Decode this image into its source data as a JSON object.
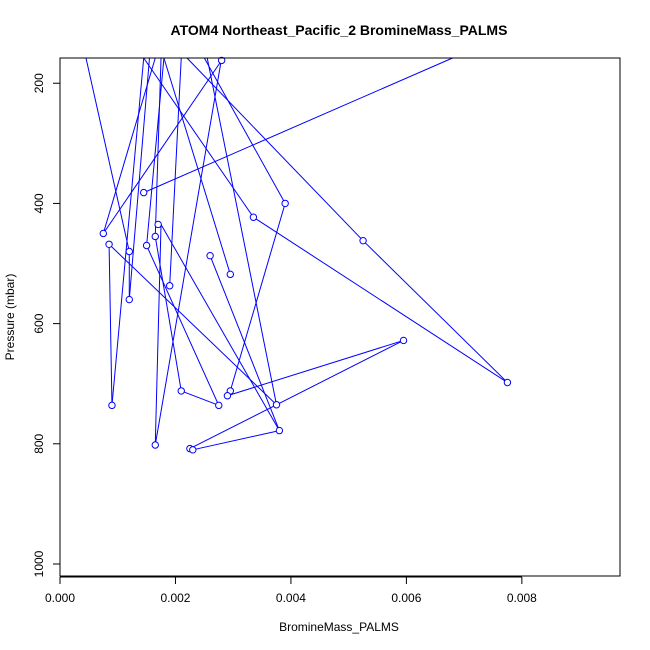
{
  "chart_data": {
    "type": "line",
    "title": "ATOM4 Northeast_Pacific_2 BromineMass_PALMS",
    "xlabel": "BromineMass_PALMS",
    "ylabel": "Pressure (mbar)",
    "xlim": [
      0,
      0.0097
    ],
    "ylim": [
      1020,
      158
    ],
    "y_reversed": true,
    "grid": false,
    "legend": "none",
    "x_ticks": [
      0,
      0.002,
      0.004,
      0.006,
      0.008
    ],
    "x_tick_labels": [
      "0.000",
      "0.002",
      "0.004",
      "0.006",
      "0.008"
    ],
    "y_ticks": [
      200,
      400,
      600,
      800,
      1000
    ],
    "y_tick_labels": [
      "200",
      "400",
      "600",
      "800",
      "1000"
    ],
    "color": "#0000ff",
    "series": [
      {
        "x": [
          0.0027,
          0.0001,
          0.0045,
          0.0068,
          0.00145,
          0.0053,
          0.0018,
          0.0039,
          0.0029,
          0.0025,
          0.0017,
          0.0005,
          0.0015,
          0.0029,
          0.0034,
          0.0035,
          0.0022,
          0.0026,
          0.0021,
          0.0038,
          0.0024,
          0.0057,
          0.0016,
          0.0013,
          0.0001,
          0.0037,
          0.0059,
          0.0027,
          0.00075,
          0.0028,
          0.00165,
          0.0023,
          0.0012,
          0.0001,
          0.0017,
          0.0032,
          0.0052,
          0.0078,
          0.0036,
          0.0015,
          0.0007
        ],
        "y": [
          205,
          158,
          245,
          158,
          382,
          158,
          458,
          400,
          165,
          487,
          540,
          158,
          300,
          300,
          158,
          435,
          170,
          720,
          158,
          780,
          810,
          630,
          158,
          160,
          800,
          158,
          640,
          160,
          470,
          200,
          455,
          810,
          735,
          160,
          350,
          425,
          463,
          698,
          370,
          420,
          460
        ]
      }
    ],
    "points": [
      {
        "x": 0.0028,
        "y": 162
      },
      {
        "x": 0.00145,
        "y": 382
      },
      {
        "x": 0.0039,
        "y": 400
      },
      {
        "x": 0.00335,
        "y": 423
      },
      {
        "x": 0.0017,
        "y": 435
      },
      {
        "x": 0.00075,
        "y": 450
      },
      {
        "x": 0.00165,
        "y": 455
      },
      {
        "x": 0.00525,
        "y": 462
      },
      {
        "x": 0.00085,
        "y": 468
      },
      {
        "x": 0.0015,
        "y": 470
      },
      {
        "x": 0.0012,
        "y": 480
      },
      {
        "x": 0.0026,
        "y": 487
      },
      {
        "x": 0.00295,
        "y": 518
      },
      {
        "x": 0.0019,
        "y": 537
      },
      {
        "x": 0.0012,
        "y": 560
      },
      {
        "x": 0.00595,
        "y": 628
      },
      {
        "x": 0.00775,
        "y": 698
      },
      {
        "x": 0.0021,
        "y": 712
      },
      {
        "x": 0.00295,
        "y": 712
      },
      {
        "x": 0.0029,
        "y": 720
      },
      {
        "x": 0.00375,
        "y": 735
      },
      {
        "x": 0.00275,
        "y": 736
      },
      {
        "x": 0.0009,
        "y": 736
      },
      {
        "x": 0.0038,
        "y": 778
      },
      {
        "x": 0.00165,
        "y": 802
      },
      {
        "x": 0.00225,
        "y": 808
      },
      {
        "x": 0.0023,
        "y": 810
      }
    ],
    "segments": [
      [
        [
          0.00045,
          158
        ],
        [
          0.0012,
          480
        ]
      ],
      [
        [
          0.0012,
          480
        ],
        [
          0.0012,
          560
        ]
      ],
      [
        [
          0.0012,
          560
        ],
        [
          0.00155,
          158
        ]
      ],
      [
        [
          0.0009,
          736
        ],
        [
          0.00085,
          468
        ]
      ],
      [
        [
          0.0009,
          736
        ],
        [
          0.00145,
          158
        ]
      ],
      [
        [
          0.00085,
          468
        ],
        [
          0.00375,
          735
        ]
      ],
      [
        [
          0.00375,
          735
        ],
        [
          0.00255,
          158
        ]
      ],
      [
        [
          0.00075,
          450
        ],
        [
          0.0028,
          162
        ]
      ],
      [
        [
          0.00075,
          450
        ],
        [
          0.00165,
          158
        ]
      ],
      [
        [
          0.00145,
          382
        ],
        [
          0.0068,
          158
        ]
      ],
      [
        [
          0.00165,
          802
        ],
        [
          0.00175,
          435
        ]
      ],
      [
        [
          0.00175,
          435
        ],
        [
          0.0038,
          778
        ]
      ],
      [
        [
          0.00165,
          802
        ],
        [
          0.0028,
          158
        ]
      ],
      [
        [
          0.00165,
          455
        ],
        [
          0.00175,
          158
        ]
      ],
      [
        [
          0.00165,
          455
        ],
        [
          0.0021,
          712
        ]
      ],
      [
        [
          0.00275,
          736
        ],
        [
          0.0021,
          712
        ]
      ],
      [
        [
          0.00275,
          736
        ],
        [
          0.0015,
          470
        ]
      ],
      [
        [
          0.0015,
          470
        ],
        [
          0.0018,
          158
        ]
      ],
      [
        [
          0.0019,
          537
        ],
        [
          0.0021,
          158
        ]
      ],
      [
        [
          0.0029,
          720
        ],
        [
          0.00295,
          712
        ]
      ],
      [
        [
          0.00295,
          712
        ],
        [
          0.0039,
          400
        ]
      ],
      [
        [
          0.0039,
          400
        ],
        [
          0.0025,
          158
        ]
      ],
      [
        [
          0.0029,
          720
        ],
        [
          0.00595,
          628
        ]
      ],
      [
        [
          0.00595,
          628
        ],
        [
          0.00225,
          808
        ]
      ],
      [
        [
          0.0023,
          810
        ],
        [
          0.0038,
          778
        ]
      ],
      [
        [
          0.0026,
          487
        ],
        [
          0.0038,
          778
        ]
      ],
      [
        [
          0.00295,
          518
        ],
        [
          0.0018,
          158
        ]
      ],
      [
        [
          0.00335,
          423
        ],
        [
          0.00775,
          698
        ]
      ],
      [
        [
          0.00775,
          698
        ],
        [
          0.00525,
          462
        ]
      ],
      [
        [
          0.00525,
          462
        ],
        [
          0.0022,
          158
        ]
      ],
      [
        [
          0.00335,
          423
        ],
        [
          0.00145,
          158
        ]
      ]
    ]
  }
}
